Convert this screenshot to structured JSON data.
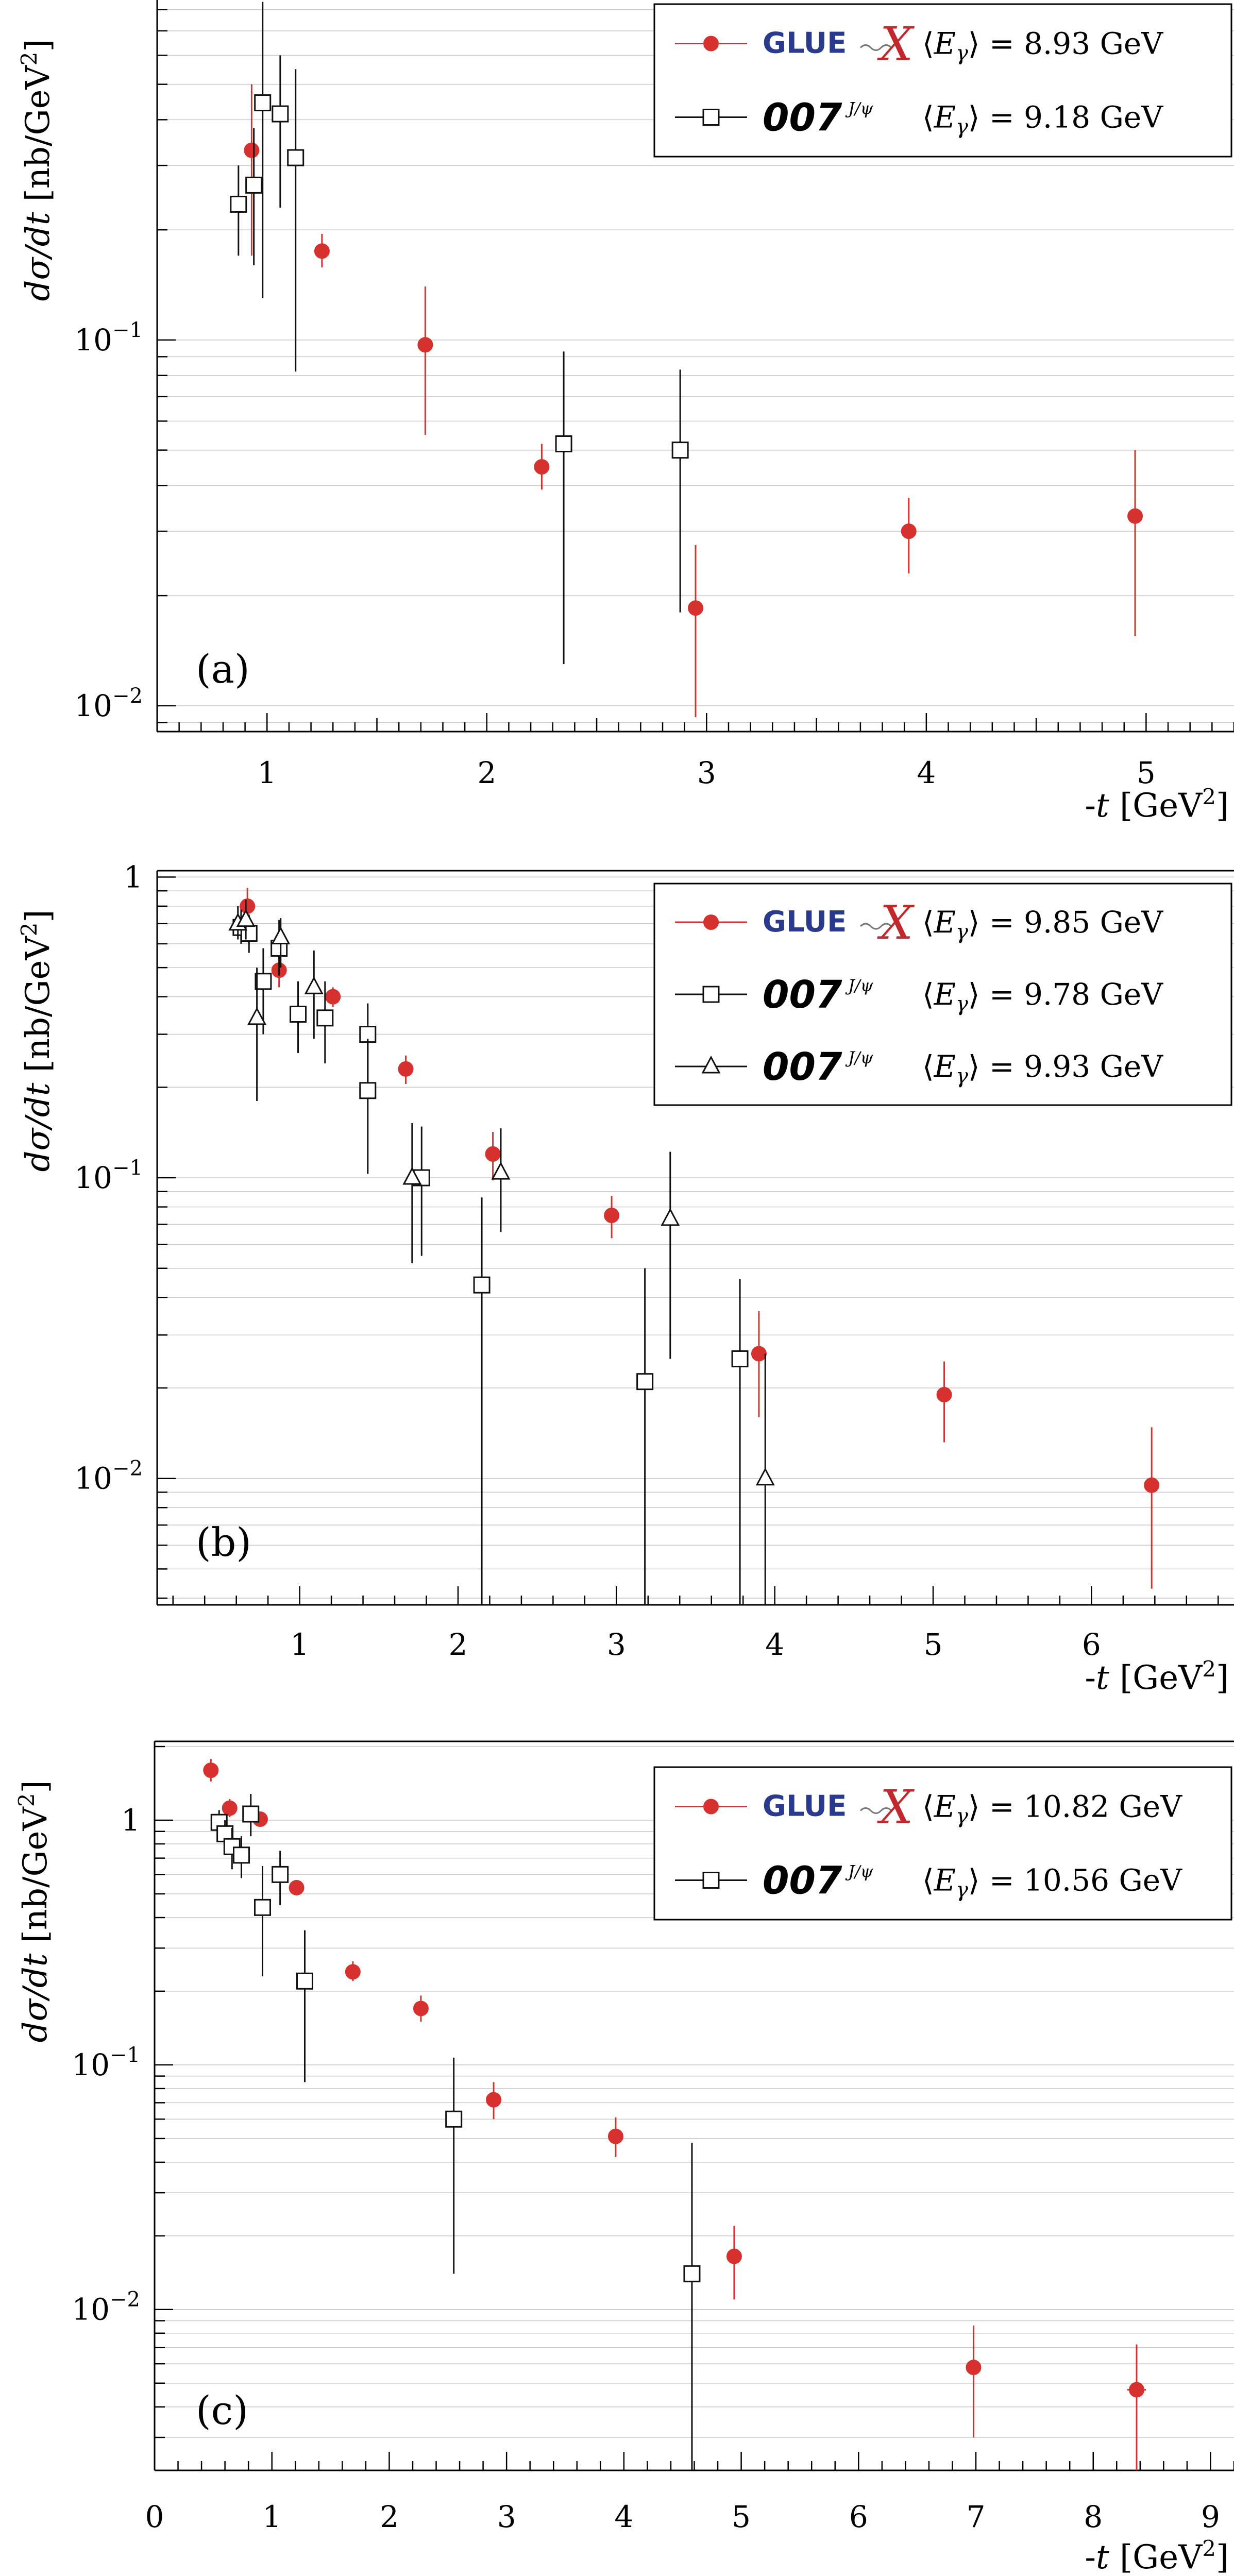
{
  "colors": {
    "gluex": "#d7312f",
    "ref007": "#111111",
    "grid": "#c9c9c9"
  },
  "chart_data": [
    {
      "type": "scatter",
      "panel_label": "(a)",
      "ylabel": "dσ/dt [nb/GeV²]",
      "xlabel": "-t [GeV²]",
      "yscale": "log",
      "xlim": [
        0.5,
        5.4
      ],
      "ylim": [
        0.0085,
        0.85
      ],
      "grid": "horizontal",
      "legend_position": "top-right",
      "x_ticks": [
        1,
        2,
        3,
        4,
        5
      ],
      "y_tick_labels": [
        {
          "value": 0.1,
          "mantissa": "10",
          "exp": "−1"
        },
        {
          "value": 0.01,
          "mantissa": "10",
          "exp": "−2"
        }
      ],
      "series": [
        {
          "legend_logo": "GlueX",
          "legend_text": "⟨E_γ⟩ = 8.93 GeV",
          "marker": "filled-circle",
          "color": "#d7312f",
          "points": [
            {
              "x": 0.93,
              "y": 0.33,
              "lo": 0.17,
              "hi": 0.5
            },
            {
              "x": 1.25,
              "y": 0.175,
              "lo": 0.158,
              "hi": 0.195
            },
            {
              "x": 1.72,
              "y": 0.097,
              "lo": 0.055,
              "hi": 0.14
            },
            {
              "x": 2.25,
              "y": 0.045,
              "lo": 0.039,
              "hi": 0.052
            },
            {
              "x": 2.95,
              "y": 0.0185,
              "lo": 0.0093,
              "hi": 0.0275
            },
            {
              "x": 3.92,
              "y": 0.03,
              "lo": 0.023,
              "hi": 0.037
            },
            {
              "x": 4.95,
              "y": 0.033,
              "lo": 0.0155,
              "hi": 0.05
            }
          ]
        },
        {
          "legend_logo": "007",
          "legend_text": "⟨E_γ⟩ = 9.18 GeV",
          "marker": "open-square",
          "color": "#111111",
          "points": [
            {
              "x": 0.87,
              "y": 0.235,
              "lo": 0.17,
              "hi": 0.3
            },
            {
              "x": 0.94,
              "y": 0.265,
              "lo": 0.16,
              "hi": 0.38
            },
            {
              "x": 0.98,
              "y": 0.445,
              "lo": 0.13,
              "hi": 0.84
            },
            {
              "x": 1.06,
              "y": 0.415,
              "lo": 0.23,
              "hi": 0.6
            },
            {
              "x": 1.13,
              "y": 0.315,
              "lo": 0.082,
              "hi": 0.55
            },
            {
              "x": 2.35,
              "y": 0.052,
              "lo": 0.013,
              "hi": 0.093
            },
            {
              "x": 2.88,
              "y": 0.05,
              "lo": 0.018,
              "hi": 0.083
            }
          ]
        }
      ]
    },
    {
      "type": "scatter",
      "panel_label": "(b)",
      "ylabel": "dσ/dt [nb/GeV²]",
      "xlabel": "-t [GeV²]",
      "yscale": "log",
      "xlim": [
        0.1,
        6.9
      ],
      "ylim": [
        0.0038,
        1.05
      ],
      "grid": "horizontal",
      "legend_position": "top-right",
      "x_ticks": [
        1,
        2,
        3,
        4,
        5,
        6
      ],
      "y_tick_labels": [
        {
          "value": 1,
          "mantissa": "1",
          "exp": ""
        },
        {
          "value": 0.1,
          "mantissa": "10",
          "exp": "−1"
        },
        {
          "value": 0.01,
          "mantissa": "10",
          "exp": "−2"
        }
      ],
      "series": [
        {
          "legend_logo": "GlueX",
          "legend_text": "⟨E_γ⟩ = 9.85 GeV",
          "marker": "filled-circle",
          "color": "#d7312f",
          "points": [
            {
              "x": 0.67,
              "y": 0.8,
              "lo": 0.7,
              "hi": 0.92
            },
            {
              "x": 0.87,
              "y": 0.49,
              "lo": 0.43,
              "hi": 0.55
            },
            {
              "x": 1.21,
              "y": 0.4,
              "lo": 0.37,
              "hi": 0.43
            },
            {
              "x": 1.67,
              "y": 0.23,
              "lo": 0.205,
              "hi": 0.255
            },
            {
              "x": 2.22,
              "y": 0.12,
              "lo": 0.098,
              "hi": 0.142
            },
            {
              "x": 2.97,
              "y": 0.075,
              "lo": 0.063,
              "hi": 0.087
            },
            {
              "x": 3.9,
              "y": 0.026,
              "lo": 0.016,
              "hi": 0.036
            },
            {
              "x": 5.07,
              "y": 0.019,
              "lo": 0.0132,
              "hi": 0.0245
            },
            {
              "x": 6.38,
              "y": 0.0095,
              "lo": 0.0043,
              "hi": 0.0148
            }
          ]
        },
        {
          "legend_logo": "007",
          "legend_text": "⟨E_γ⟩ = 9.78 GeV",
          "marker": "open-square",
          "color": "#111111",
          "points": [
            {
              "x": 0.63,
              "y": 0.68,
              "lo": 0.6,
              "hi": 0.78
            },
            {
              "x": 0.68,
              "y": 0.65,
              "lo": 0.56,
              "hi": 0.75
            },
            {
              "x": 0.77,
              "y": 0.45,
              "lo": 0.3,
              "hi": 0.58
            },
            {
              "x": 0.87,
              "y": 0.58,
              "lo": 0.47,
              "hi": 0.72
            },
            {
              "x": 0.99,
              "y": 0.35,
              "lo": 0.26,
              "hi": 0.45
            },
            {
              "x": 1.16,
              "y": 0.34,
              "lo": 0.24,
              "hi": 0.45
            },
            {
              "x": 1.43,
              "y": 0.3,
              "lo": 0.2,
              "hi": 0.38
            },
            {
              "x": 1.43,
              "y": 0.195,
              "lo": 0.103,
              "hi": 0.29
            },
            {
              "x": 1.77,
              "y": 0.1,
              "lo": 0.055,
              "hi": 0.148
            },
            {
              "x": 2.15,
              "y": 0.044,
              "lo": 0.0038,
              "hi": 0.086
            },
            {
              "x": 3.18,
              "y": 0.021,
              "lo": 0.0038,
              "hi": 0.05
            },
            {
              "x": 3.78,
              "y": 0.025,
              "lo": 0.0038,
              "hi": 0.046
            }
          ]
        },
        {
          "legend_logo": "007",
          "legend_text": "⟨E_γ⟩ = 9.93 GeV",
          "marker": "open-triangle",
          "color": "#111111",
          "points": [
            {
              "x": 0.61,
              "y": 0.7,
              "lo": 0.62,
              "hi": 0.8
            },
            {
              "x": 0.66,
              "y": 0.72,
              "lo": 0.62,
              "hi": 0.84
            },
            {
              "x": 0.73,
              "y": 0.34,
              "lo": 0.18,
              "hi": 0.5
            },
            {
              "x": 0.88,
              "y": 0.63,
              "lo": 0.5,
              "hi": 0.73
            },
            {
              "x": 1.09,
              "y": 0.43,
              "lo": 0.29,
              "hi": 0.57
            },
            {
              "x": 1.71,
              "y": 0.1,
              "lo": 0.052,
              "hi": 0.152
            },
            {
              "x": 2.27,
              "y": 0.104,
              "lo": 0.066,
              "hi": 0.146
            },
            {
              "x": 3.34,
              "y": 0.073,
              "lo": 0.025,
              "hi": 0.122
            },
            {
              "x": 3.94,
              "y": 0.01,
              "lo": 0.0038,
              "hi": 0.026
            }
          ]
        }
      ]
    },
    {
      "type": "scatter",
      "panel_label": "(c)",
      "ylabel": "dσ/dt [nb/GeV²]",
      "xlabel": "-t [GeV²]",
      "yscale": "log",
      "xlim": [
        0,
        9.2
      ],
      "ylim": [
        0.0022,
        2.1
      ],
      "grid": "horizontal",
      "legend_position": "top-right",
      "x_ticks": [
        0,
        1,
        2,
        3,
        4,
        5,
        6,
        7,
        8,
        9
      ],
      "y_tick_labels": [
        {
          "value": 1,
          "mantissa": "1",
          "exp": ""
        },
        {
          "value": 0.1,
          "mantissa": "10",
          "exp": "−1"
        },
        {
          "value": 0.01,
          "mantissa": "10",
          "exp": "−2"
        }
      ],
      "series": [
        {
          "legend_logo": "GlueX",
          "legend_text": "⟨E_γ⟩ = 10.82 GeV",
          "marker": "filled-circle",
          "color": "#d7312f",
          "points": [
            {
              "x": 0.48,
              "y": 1.6,
              "lo": 1.44,
              "hi": 1.78
            },
            {
              "x": 0.64,
              "y": 1.12,
              "lo": 1.03,
              "hi": 1.22
            },
            {
              "x": 0.9,
              "y": 1.01,
              "lo": 0.95,
              "hi": 1.08
            },
            {
              "x": 1.21,
              "y": 0.53,
              "lo": 0.5,
              "hi": 0.56
            },
            {
              "x": 1.69,
              "y": 0.24,
              "lo": 0.22,
              "hi": 0.265
            },
            {
              "x": 2.27,
              "y": 0.17,
              "lo": 0.15,
              "hi": 0.192
            },
            {
              "x": 2.89,
              "y": 0.072,
              "lo": 0.06,
              "hi": 0.085
            },
            {
              "x": 3.93,
              "y": 0.051,
              "lo": 0.042,
              "hi": 0.061
            },
            {
              "x": 4.94,
              "y": 0.0165,
              "lo": 0.011,
              "hi": 0.022
            },
            {
              "x": 6.98,
              "y": 0.0058,
              "lo": 0.003,
              "hi": 0.0086
            },
            {
              "x": 8.37,
              "y": 0.0047,
              "lo": 0.0022,
              "hi": 0.0072,
              "xerr": 0.08
            }
          ]
        },
        {
          "legend_logo": "007",
          "legend_text": "⟨E_γ⟩ = 10.56 GeV",
          "marker": "open-square",
          "color": "#111111",
          "points": [
            {
              "x": 0.55,
              "y": 0.98,
              "lo": 0.85,
              "hi": 1.1
            },
            {
              "x": 0.6,
              "y": 0.88,
              "lo": 0.76,
              "hi": 1.0
            },
            {
              "x": 0.66,
              "y": 0.78,
              "lo": 0.63,
              "hi": 0.93
            },
            {
              "x": 0.74,
              "y": 0.72,
              "lo": 0.58,
              "hi": 0.86
            },
            {
              "x": 0.82,
              "y": 1.06,
              "lo": 0.86,
              "hi": 1.28
            },
            {
              "x": 0.92,
              "y": 0.44,
              "lo": 0.23,
              "hi": 0.65
            },
            {
              "x": 1.07,
              "y": 0.6,
              "lo": 0.45,
              "hi": 0.75
            },
            {
              "x": 1.28,
              "y": 0.22,
              "lo": 0.085,
              "hi": 0.355
            },
            {
              "x": 2.55,
              "y": 0.06,
              "lo": 0.014,
              "hi": 0.107
            },
            {
              "x": 4.58,
              "y": 0.014,
              "lo": 0.0022,
              "hi": 0.048
            }
          ]
        }
      ]
    }
  ]
}
